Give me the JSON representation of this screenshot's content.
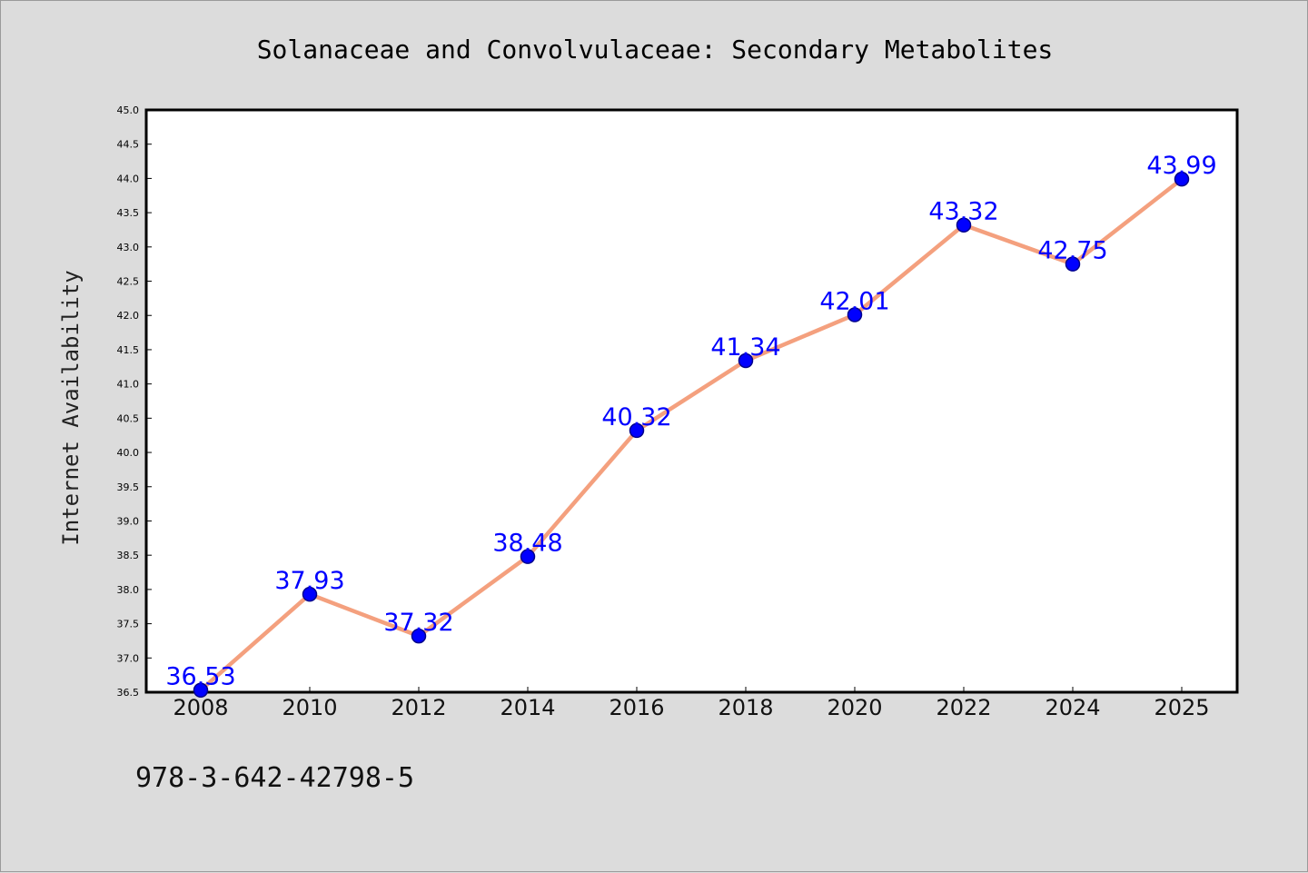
{
  "chart_data": {
    "type": "line",
    "title": "Solanaceae and Convolvulaceae: Secondary Metabolites",
    "xlabel": "",
    "ylabel": "Internet Availability",
    "categories": [
      "2008",
      "2010",
      "2012",
      "2014",
      "2016",
      "2018",
      "2020",
      "2022",
      "2024",
      "2025"
    ],
    "values": [
      36.53,
      37.93,
      37.32,
      38.48,
      40.32,
      41.34,
      42.01,
      43.32,
      42.75,
      43.99
    ],
    "data_labels": [
      "36.53",
      "37.93",
      "37.32",
      "38.48",
      "40.32",
      "41.34",
      "42.01",
      "43.32",
      "42.75",
      "43.99"
    ],
    "ylim": [
      36.5,
      45.0
    ],
    "yticks": [
      "36.5",
      "37.0",
      "37.5",
      "38.0",
      "38.5",
      "39.0",
      "39.5",
      "40.0",
      "40.5",
      "41.0",
      "41.5",
      "42.0",
      "42.5",
      "43.0",
      "43.5",
      "44.0",
      "44.5",
      "45.0"
    ],
    "grid": false,
    "legend": "none",
    "colors": {
      "line": "#f4a07e",
      "marker": "#0000ff",
      "marker_edge": "#00008b",
      "data_label": "#0000ff",
      "background": "#dcdcdc",
      "plot_area": "#ffffff"
    }
  },
  "footer": {
    "isbn": "978-3-642-42798-5"
  }
}
